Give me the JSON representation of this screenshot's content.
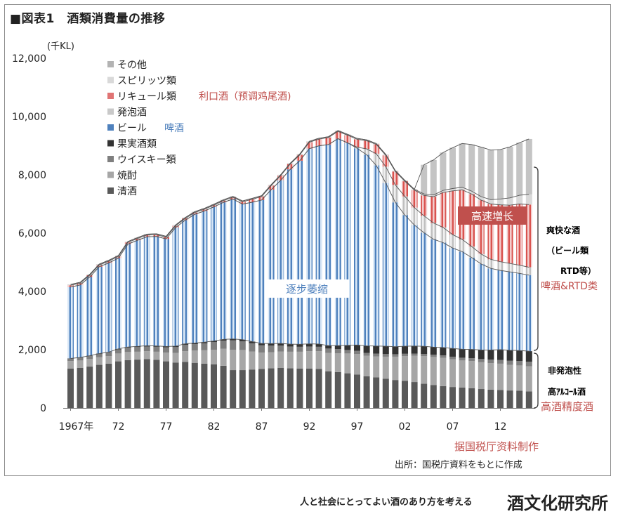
{
  "header": {
    "title": "■図表1　酒類消費量の推移"
  },
  "footer": {
    "tagline": "人と社会にとってよい酒のあり方を考える",
    "brand": "酒文化研究所"
  },
  "chart_data": {
    "type": "bar",
    "stacked": true,
    "unit": "(千KL)",
    "ylim": [
      0,
      12000
    ],
    "yticks": [
      "0",
      "2,000",
      "4,000",
      "6,000",
      "8,000",
      "10,000",
      "12,000"
    ],
    "xtick_labels": [
      "1967年",
      "72",
      "77",
      "82",
      "87",
      "92",
      "97",
      "02",
      "07",
      "12"
    ],
    "years": [
      1967,
      1968,
      1969,
      1970,
      1971,
      1972,
      1973,
      1974,
      1975,
      1976,
      1977,
      1978,
      1979,
      1980,
      1981,
      1982,
      1983,
      1984,
      1985,
      1986,
      1987,
      1988,
      1989,
      1990,
      1991,
      1992,
      1993,
      1994,
      1995,
      1996,
      1997,
      1998,
      1999,
      2000,
      2001,
      2002,
      2003,
      2004,
      2005,
      2006,
      2007,
      2008,
      2009,
      2010,
      2011,
      2012,
      2013,
      2014,
      2015
    ],
    "series": [
      {
        "name": "清酒",
        "color": "#595959",
        "values": [
          1350,
          1380,
          1420,
          1480,
          1520,
          1600,
          1640,
          1660,
          1680,
          1650,
          1600,
          1560,
          1580,
          1550,
          1520,
          1500,
          1450,
          1300,
          1300,
          1320,
          1340,
          1360,
          1380,
          1360,
          1350,
          1350,
          1340,
          1260,
          1230,
          1190,
          1150,
          1090,
          1050,
          1000,
          960,
          930,
          890,
          830,
          790,
          750,
          720,
          700,
          680,
          650,
          630,
          620,
          600,
          590,
          570
        ]
      },
      {
        "name": "焼酎",
        "color": "#a6a6a6",
        "values": [
          260,
          250,
          260,
          260,
          260,
          270,
          280,
          270,
          270,
          280,
          300,
          330,
          370,
          420,
          460,
          500,
          580,
          700,
          690,
          620,
          560,
          550,
          560,
          570,
          580,
          600,
          610,
          630,
          650,
          680,
          700,
          700,
          720,
          760,
          800,
          850,
          900,
          950,
          960,
          970,
          950,
          930,
          930,
          920,
          910,
          900,
          880,
          870,
          860
        ]
      },
      {
        "name": "ウイスキー類",
        "color": "#7f7f7f",
        "values": [
          80,
          90,
          100,
          110,
          120,
          140,
          150,
          160,
          160,
          170,
          180,
          200,
          220,
          220,
          240,
          260,
          280,
          320,
          300,
          280,
          250,
          230,
          200,
          180,
          170,
          160,
          150,
          150,
          140,
          120,
          110,
          100,
          95,
          90,
          85,
          80,
          75,
          75,
          80,
          85,
          90,
          95,
          100,
          110,
          120,
          130,
          140,
          150,
          160
        ]
      },
      {
        "name": "果実酒類",
        "color": "#333333",
        "values": [
          10,
          12,
          14,
          16,
          18,
          20,
          22,
          24,
          26,
          28,
          30,
          32,
          34,
          36,
          38,
          40,
          45,
          50,
          55,
          60,
          65,
          70,
          75,
          80,
          85,
          90,
          95,
          100,
          120,
          160,
          200,
          240,
          260,
          270,
          260,
          260,
          260,
          260,
          260,
          270,
          280,
          290,
          300,
          310,
          330,
          350,
          360,
          360,
          360
        ]
      },
      {
        "name": "ビール",
        "color": "#4f81bd",
        "values": [
          2450,
          2490,
          2700,
          2980,
          3060,
          3110,
          3530,
          3640,
          3740,
          3760,
          3690,
          4070,
          4240,
          4420,
          4500,
          4600,
          4700,
          4800,
          4650,
          4780,
          4920,
          5280,
          5600,
          6000,
          6300,
          6700,
          6800,
          6900,
          7100,
          6950,
          6750,
          6560,
          6200,
          5600,
          4950,
          4500,
          4150,
          3900,
          3700,
          3600,
          3450,
          3350,
          3150,
          2950,
          2800,
          2720,
          2690,
          2650,
          2610
        ]
      },
      {
        "name": "発泡酒",
        "color": "#c9c9c9",
        "values": [
          0,
          0,
          0,
          0,
          0,
          0,
          0,
          0,
          0,
          0,
          0,
          0,
          0,
          0,
          0,
          0,
          0,
          0,
          0,
          0,
          0,
          0,
          0,
          0,
          0,
          0,
          0,
          0,
          0,
          0,
          40,
          200,
          400,
          560,
          600,
          640,
          600,
          580,
          560,
          520,
          460,
          420,
          380,
          340,
          310,
          300,
          290,
          280,
          270
        ]
      },
      {
        "name": "リキュール類",
        "color": "#e07474",
        "values": [
          60,
          60,
          60,
          60,
          60,
          60,
          60,
          60,
          60,
          60,
          60,
          60,
          60,
          60,
          60,
          60,
          60,
          60,
          80,
          100,
          120,
          140,
          160,
          180,
          200,
          220,
          230,
          240,
          250,
          260,
          270,
          280,
          320,
          390,
          460,
          520,
          600,
          700,
          900,
          1200,
          1500,
          1700,
          1800,
          1850,
          1900,
          1950,
          2000,
          2100,
          2150
        ]
      },
      {
        "name": "スピリッツ類",
        "color": "#d9d9d9",
        "values": [
          30,
          30,
          30,
          30,
          30,
          30,
          30,
          30,
          30,
          30,
          30,
          30,
          30,
          30,
          30,
          30,
          30,
          30,
          30,
          30,
          30,
          30,
          30,
          30,
          30,
          30,
          30,
          30,
          30,
          30,
          30,
          30,
          30,
          30,
          30,
          30,
          30,
          50,
          60,
          70,
          80,
          90,
          100,
          120,
          150,
          200,
          250,
          300,
          350
        ]
      },
      {
        "name": "その他",
        "color": "#b3b3b3",
        "values": [
          0,
          0,
          0,
          0,
          0,
          0,
          0,
          0,
          0,
          0,
          0,
          0,
          0,
          0,
          0,
          0,
          0,
          0,
          0,
          0,
          0,
          0,
          0,
          0,
          0,
          0,
          0,
          0,
          0,
          0,
          0,
          0,
          0,
          0,
          0,
          0,
          0,
          1000,
          1200,
          1300,
          1400,
          1500,
          1600,
          1700,
          1700,
          1700,
          1750,
          1800,
          1900
        ]
      }
    ],
    "legend": {
      "placement": "top-left",
      "order": [
        "その他",
        "スピリッツ類",
        "リキュール類",
        "発泡酒",
        "ビール",
        "果実酒類",
        "ウイスキー類",
        "焼酎",
        "清酒"
      ],
      "notes": {
        "リキュール類": "利口酒（预调鸡尾酒)",
        "ビール": "啤酒"
      }
    },
    "annotations": {
      "beer_decline": "逐步萎缩",
      "rtd_growth": "高速増长",
      "group_top_jp": [
        "爽快な酒",
        "（ビール類",
        "RTD等）"
      ],
      "group_top_cn": "啤酒&RTD类",
      "group_mid_jp": "非発泡性",
      "group_bottom_jp": "高ｱﾙｺｰﾙ酒",
      "group_bottom_cn": "高酒精度酒",
      "credit_cn": "据国税厅资料制作",
      "source_jp": "出所：国税庁資料をもとに作成"
    },
    "grid": false,
    "colors": {
      "annotation_red": "#c0504d",
      "annotation_blue": "#4f81bd",
      "beer_hatch": "#dbe9f7"
    }
  }
}
